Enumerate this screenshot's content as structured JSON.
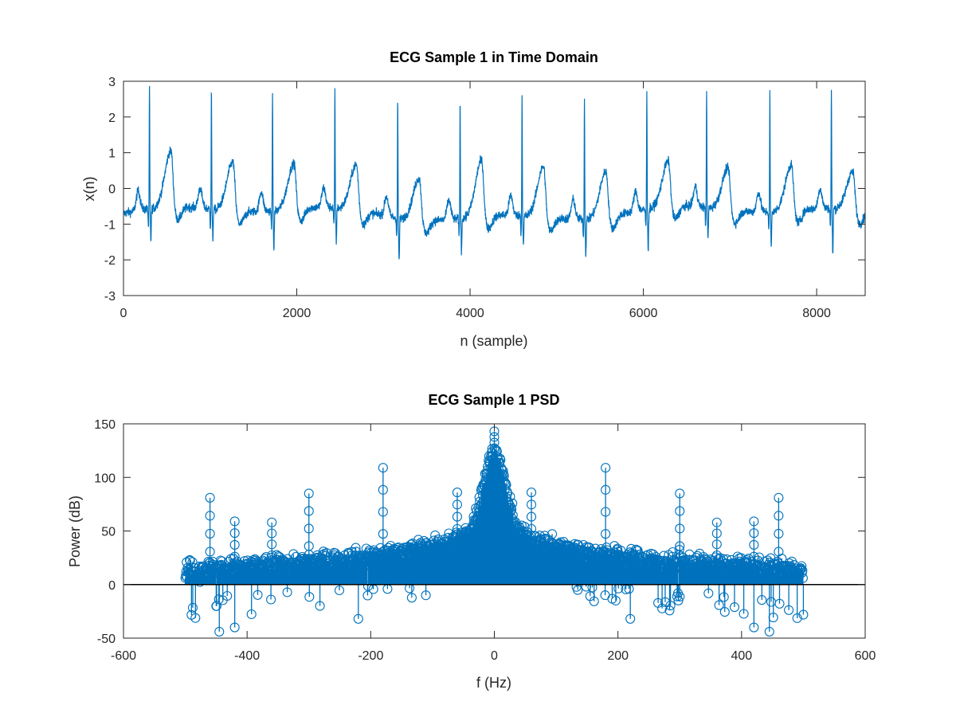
{
  "colors": {
    "series": "#0072bd",
    "axes": "#262626",
    "zero_line": "#000000",
    "background": "#ffffff"
  },
  "chart_data": [
    {
      "type": "line",
      "title": "ECG Sample 1 in Time Domain",
      "xlabel": "n (sample)",
      "ylabel": "x(n)",
      "xlim": [
        0,
        8560
      ],
      "ylim": [
        -3,
        3
      ],
      "xticks": [
        0,
        2000,
        4000,
        6000,
        8000
      ],
      "xtick_labels": [
        "0",
        "2000",
        "4000",
        "6000",
        "8000"
      ],
      "yticks": [
        -3,
        -2,
        -1,
        0,
        1,
        2,
        3
      ],
      "ytick_labels": [
        "-3",
        "-2",
        "-1",
        "0",
        "1",
        "2",
        "3"
      ],
      "grid": false,
      "series": [
        {
          "values_description_note": "",
          "baseline": -0.7,
          "noise": 0.12,
          "beats": [
            {
              "r": 300,
              "r_peak": 2.72,
              "s_min": -1.9,
              "t_peak": 1.1
            },
            {
              "r": 1015,
              "r_peak": 2.65,
              "s_min": -1.85,
              "t_peak": 0.9
            },
            {
              "r": 1720,
              "r_peak": 2.68,
              "s_min": -2.1,
              "t_peak": 0.8
            },
            {
              "r": 2440,
              "r_peak": 2.6,
              "s_min": -1.95,
              "t_peak": 0.8
            },
            {
              "r": 3165,
              "r_peak": 2.6,
              "s_min": -2.2,
              "t_peak": 0.7
            },
            {
              "r": 3885,
              "r_peak": 2.62,
              "s_min": -1.9,
              "t_peak": 1.1
            },
            {
              "r": 4600,
              "r_peak": 2.68,
              "s_min": -1.85,
              "t_peak": 0.95
            },
            {
              "r": 5320,
              "r_peak": 2.62,
              "s_min": -2.0,
              "t_peak": 0.8
            },
            {
              "r": 6040,
              "r_peak": 2.64,
              "s_min": -2.2,
              "t_peak": 0.8
            },
            {
              "r": 6730,
              "r_peak": 2.6,
              "s_min": -1.9,
              "t_peak": 0.7
            },
            {
              "r": 7460,
              "r_peak": 2.66,
              "s_min": -2.0,
              "t_peak": 0.8
            },
            {
              "r": 8170,
              "r_peak": 2.62,
              "s_min": -2.3,
              "t_peak": 0.6
            }
          ]
        }
      ]
    },
    {
      "type": "scatter",
      "style": "stem",
      "title": "ECG Sample 1 PSD",
      "xlabel": "f (Hz)",
      "ylabel": "Power (dB)",
      "xlim": [
        -600,
        600
      ],
      "ylim": [
        -50,
        150
      ],
      "xticks": [
        -600,
        -400,
        -200,
        0,
        200,
        400,
        600
      ],
      "xtick_labels": [
        "-600",
        "-400",
        "-200",
        "0",
        "200",
        "400",
        "600"
      ],
      "yticks": [
        -50,
        0,
        50,
        100,
        150
      ],
      "ytick_labels": [
        "-50",
        "0",
        "50",
        "100",
        "150"
      ],
      "grid": false,
      "zero_line": 0,
      "frequency_range": [
        -500,
        500
      ],
      "max_power_at_zero": 143,
      "harmonic_peaks": [
        {
          "f": -460,
          "p": 81
        },
        {
          "f": -420,
          "p": 59
        },
        {
          "f": -360,
          "p": 58
        },
        {
          "f": -300,
          "p": 85
        },
        {
          "f": -180,
          "p": 109
        },
        {
          "f": -60,
          "p": 86
        },
        {
          "f": 0,
          "p": 143
        },
        {
          "f": 60,
          "p": 86
        },
        {
          "f": 180,
          "p": 109
        },
        {
          "f": 300,
          "p": 85
        },
        {
          "f": 360,
          "p": 58
        },
        {
          "f": 420,
          "p": 59
        },
        {
          "f": 460,
          "p": 81
        }
      ],
      "low_dips": [
        {
          "f": -445,
          "p": -44
        },
        {
          "f": -420,
          "p": -40
        },
        {
          "f": -220,
          "p": -32
        },
        {
          "f": 220,
          "p": -32
        },
        {
          "f": 420,
          "p": -40
        },
        {
          "f": 445,
          "p": -44
        }
      ]
    }
  ]
}
